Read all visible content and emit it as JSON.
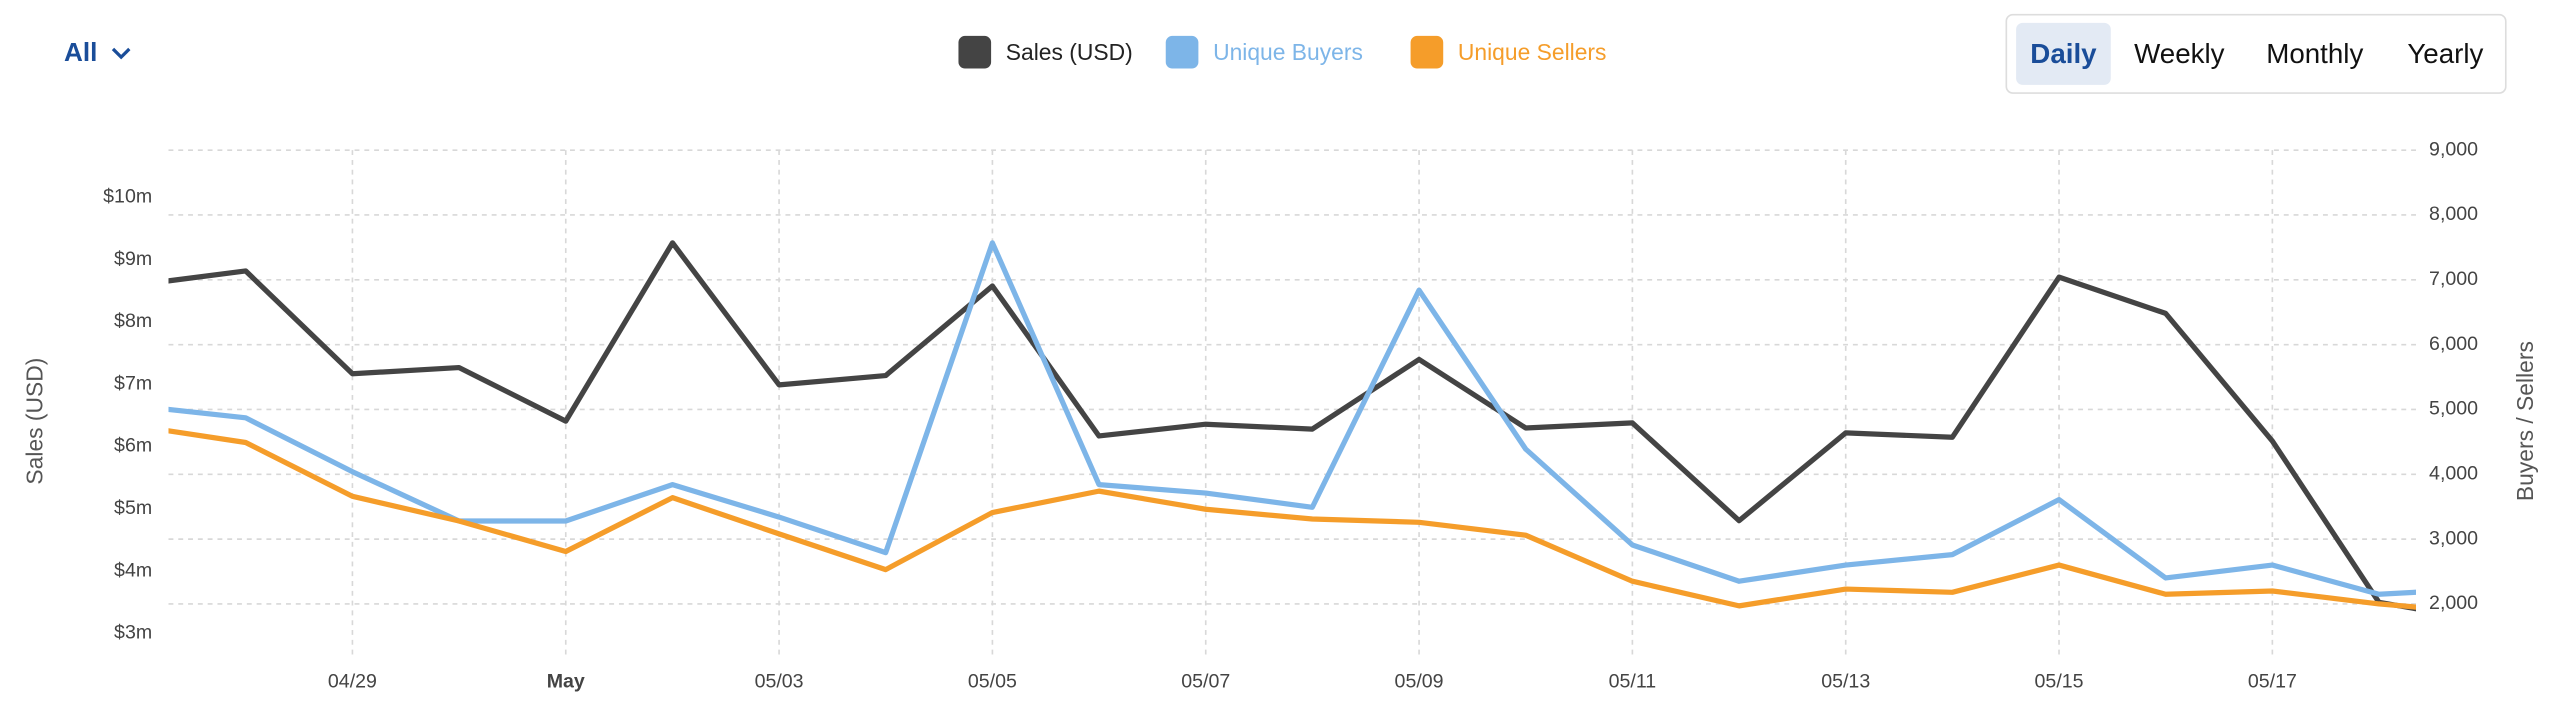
{
  "filter": "All",
  "periods": [
    "Daily",
    "Weekly",
    "Monthly",
    "Yearly"
  ],
  "selected_period": "Daily",
  "chart_data": {
    "type": "line",
    "y_label": "Sales (USD)",
    "y2_label": "Buyers / Sellers",
    "categories": [
      null,
      null,
      "04/29",
      null,
      "May",
      null,
      "05/03",
      null,
      "05/05",
      null,
      "05/07",
      null,
      "05/09",
      null,
      "05/11",
      null,
      "05/13",
      null,
      "05/15",
      null,
      "05/17",
      null,
      null
    ],
    "series": [
      {
        "name": "Sales (USD)",
        "color": "#444444",
        "values": [
          8.6,
          8.82,
          7.17,
          7.27,
          6.41,
          9.27,
          6.99,
          7.14,
          8.58,
          6.17,
          6.36,
          6.28,
          7.4,
          6.3,
          6.38,
          4.81,
          6.22,
          6.15,
          8.72,
          8.14,
          6.09,
          3.5,
          3.2
        ]
      },
      {
        "name": "Unique Buyers",
        "color": "#7db5e8",
        "axis": "y2",
        "values": [
          5050,
          4870,
          4040,
          3280,
          3280,
          3840,
          3340,
          2790,
          7570,
          3840,
          3710,
          3490,
          6840,
          4390,
          2910,
          2350,
          2600,
          2760,
          3610,
          2400,
          2600,
          2150,
          2240
        ]
      },
      {
        "name": "Unique Sellers",
        "color": "#f59d2a",
        "axis": "y2",
        "values": [
          4740,
          4490,
          3660,
          3280,
          2810,
          3640,
          3080,
          2530,
          3410,
          3740,
          3460,
          3310,
          3260,
          3060,
          2350,
          1970,
          2230,
          2180,
          2600,
          2150,
          2200,
          2000,
          1860
        ]
      }
    ],
    "ylim": [
      2.64,
      10.76
    ],
    "yticks": [
      {
        "value": 3,
        "label": "$3m"
      },
      {
        "value": 4,
        "label": "$4m"
      },
      {
        "value": 5,
        "label": "$5m"
      },
      {
        "value": 6,
        "label": "$6m"
      },
      {
        "value": 7,
        "label": "$7m"
      },
      {
        "value": 8,
        "label": "$8m"
      },
      {
        "value": 9,
        "label": "$9m"
      },
      {
        "value": 10,
        "label": "$10m"
      }
    ],
    "y2lim": [
      1200,
      9000
    ],
    "y2ticks": [
      {
        "value": 2000,
        "label": "2,000"
      },
      {
        "value": 3000,
        "label": "3,000"
      },
      {
        "value": 4000,
        "label": "4,000"
      },
      {
        "value": 5000,
        "label": "5,000"
      },
      {
        "value": 6000,
        "label": "6,000"
      },
      {
        "value": 7000,
        "label": "7,000"
      },
      {
        "value": 8000,
        "label": "8,000"
      },
      {
        "value": 9000,
        "label": "9,000"
      }
    ],
    "grid": true
  }
}
